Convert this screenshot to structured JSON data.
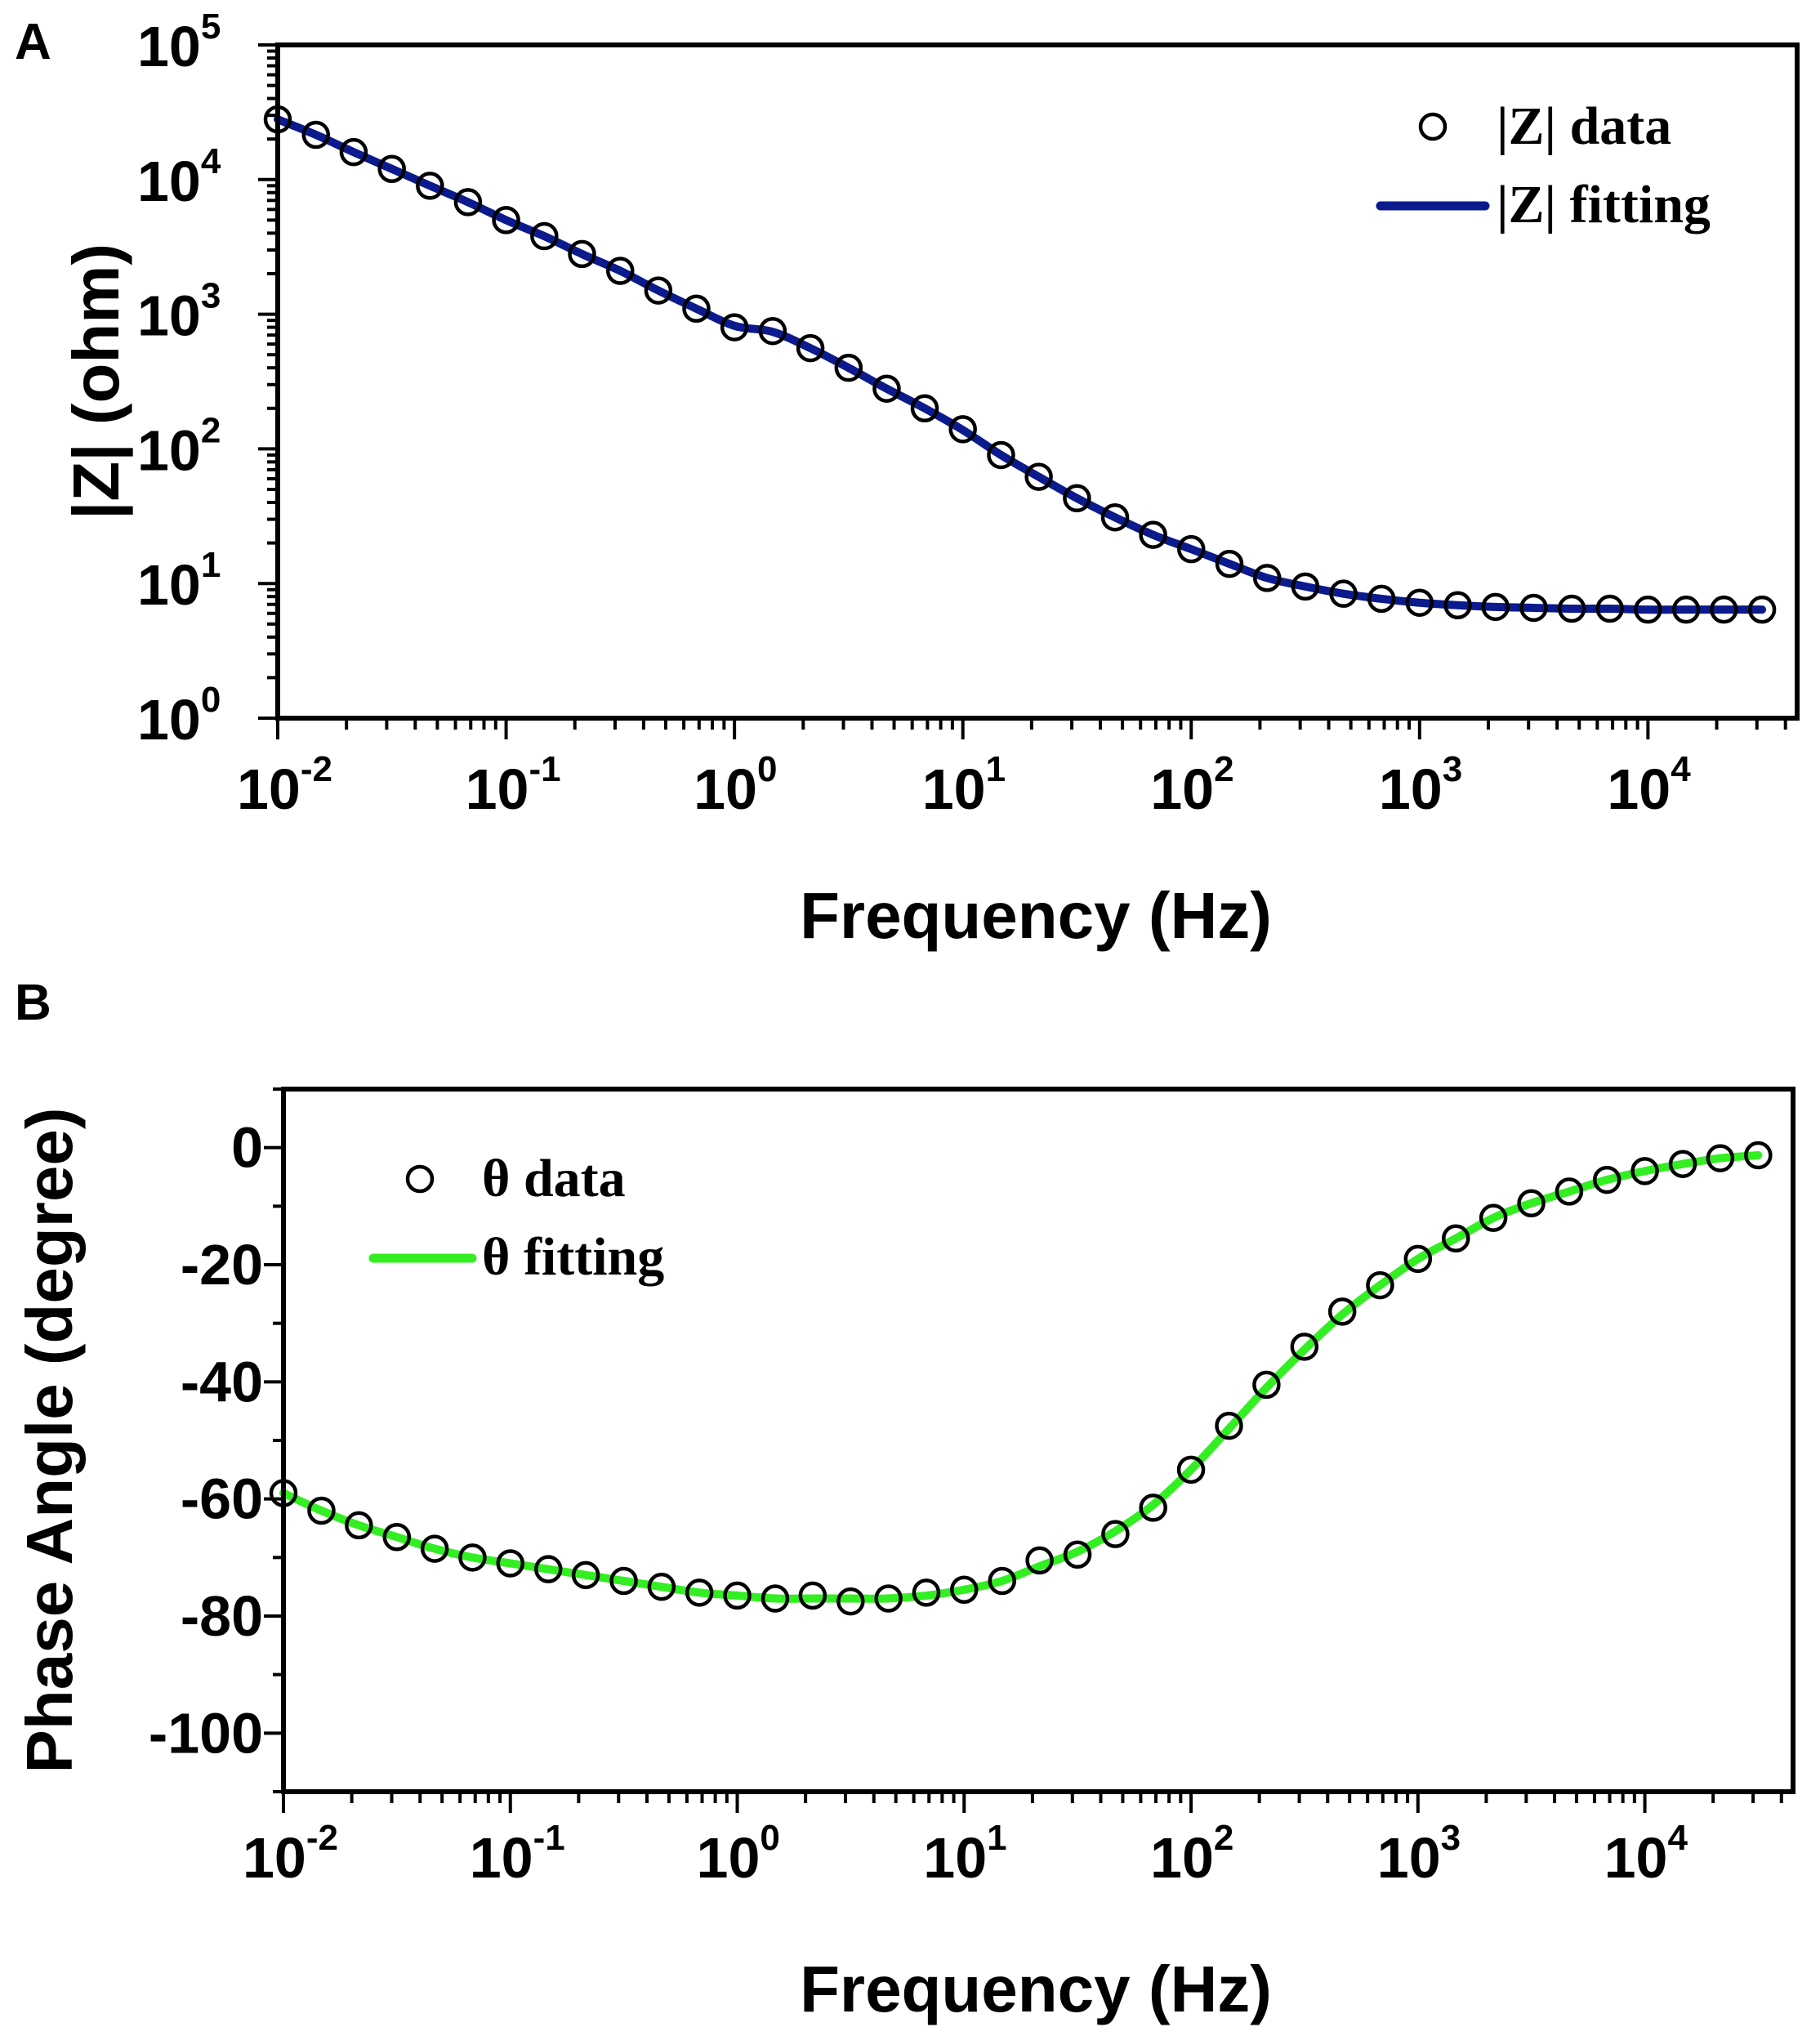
{
  "chart_data": [
    {
      "panel_label": "A",
      "type": "line",
      "yscale": "log",
      "xscale": "log",
      "title": "",
      "xlabel": "Frequency (Hz)",
      "ylabel": "|Z| (ohm)",
      "xlim": [
        0.01,
        45000
      ],
      "ylim": [
        1,
        100000
      ],
      "x_ticks": [
        {
          "base": "10",
          "exp": "-2"
        },
        {
          "base": "10",
          "exp": "-1"
        },
        {
          "base": "10",
          "exp": "0"
        },
        {
          "base": "10",
          "exp": "1"
        },
        {
          "base": "10",
          "exp": "2"
        },
        {
          "base": "10",
          "exp": "3"
        },
        {
          "base": "10",
          "exp": "4"
        }
      ],
      "y_ticks": [
        {
          "base": "10",
          "exp": "0"
        },
        {
          "base": "10",
          "exp": "1"
        },
        {
          "base": "10",
          "exp": "2"
        },
        {
          "base": "10",
          "exp": "3"
        },
        {
          "base": "10",
          "exp": "4"
        },
        {
          "base": "10",
          "exp": "5"
        }
      ],
      "legend": {
        "position": "top-right",
        "entries": [
          "|Z| data",
          "|Z| fitting"
        ]
      },
      "colors": {
        "fit": "#0b1a8c",
        "marker": "#000000"
      },
      "series": [
        {
          "name": "|Z| data",
          "kind": "markers",
          "x": [
            0.01,
            0.0147,
            0.0215,
            0.0316,
            0.0464,
            0.0681,
            0.1,
            0.147,
            0.215,
            0.316,
            0.464,
            0.681,
            1.0,
            1.47,
            2.15,
            3.16,
            4.64,
            6.81,
            10.0,
            14.7,
            21.5,
            31.6,
            46.4,
            68.1,
            100,
            147,
            215,
            316,
            464,
            681,
            1000,
            1470,
            2150,
            3160,
            4640,
            6810,
            10000,
            14700,
            21500,
            31600
          ],
          "values": [
            28000,
            21500,
            16000,
            12000,
            9000,
            6800,
            5000,
            3800,
            2800,
            2100,
            1500,
            1100,
            800,
            750,
            560,
            400,
            280,
            200,
            140,
            90,
            62,
            43,
            31,
            23,
            18,
            14,
            11,
            9.5,
            8.4,
            7.7,
            7.2,
            6.9,
            6.7,
            6.6,
            6.5,
            6.5,
            6.4,
            6.4,
            6.4,
            6.4
          ]
        },
        {
          "name": "|Z| fitting",
          "kind": "line",
          "x": [
            0.01,
            0.0147,
            0.0215,
            0.0316,
            0.0464,
            0.0681,
            0.1,
            0.147,
            0.215,
            0.316,
            0.464,
            0.681,
            1.0,
            1.47,
            2.15,
            3.16,
            4.64,
            6.81,
            10.0,
            14.7,
            21.5,
            31.6,
            46.4,
            68.1,
            100,
            147,
            215,
            316,
            464,
            681,
            1000,
            1470,
            2150,
            3160,
            4640,
            6810,
            10000,
            14700,
            21500,
            31600
          ],
          "values": [
            28000,
            21500,
            16000,
            12000,
            9000,
            6800,
            5000,
            3800,
            2800,
            2100,
            1500,
            1100,
            820,
            740,
            560,
            400,
            280,
            200,
            138,
            90,
            62,
            43,
            31,
            23,
            18,
            14,
            11,
            9.5,
            8.4,
            7.7,
            7.2,
            6.9,
            6.7,
            6.6,
            6.5,
            6.5,
            6.4,
            6.4,
            6.4,
            6.4
          ]
        }
      ]
    },
    {
      "panel_label": "B",
      "type": "line",
      "xscale": "log",
      "yscale": "linear",
      "title": "",
      "xlabel": "Frequency (Hz)",
      "ylabel": "Phase Angle (degree)",
      "xlim": [
        0.01,
        45000
      ],
      "ylim": [
        -110,
        10
      ],
      "x_ticks": [
        {
          "base": "10",
          "exp": "-2"
        },
        {
          "base": "10",
          "exp": "-1"
        },
        {
          "base": "10",
          "exp": "0"
        },
        {
          "base": "10",
          "exp": "1"
        },
        {
          "base": "10",
          "exp": "2"
        },
        {
          "base": "10",
          "exp": "3"
        },
        {
          "base": "10",
          "exp": "4"
        }
      ],
      "y_ticks": [
        "0",
        "-20",
        "-40",
        "-60",
        "-80",
        "-100"
      ],
      "legend": {
        "position": "top-left",
        "entries": [
          "θ data",
          "θ fitting"
        ]
      },
      "colors": {
        "fit": "#33ee22",
        "marker": "#000000"
      },
      "series": [
        {
          "name": "θ data",
          "kind": "markers",
          "x": [
            0.01,
            0.0147,
            0.0215,
            0.0316,
            0.0464,
            0.0681,
            0.1,
            0.147,
            0.215,
            0.316,
            0.464,
            0.681,
            1.0,
            1.47,
            2.15,
            3.16,
            4.64,
            6.81,
            10.0,
            14.7,
            21.5,
            31.6,
            46.4,
            68.1,
            100,
            147,
            215,
            316,
            464,
            681,
            1000,
            1470,
            2150,
            3160,
            4640,
            6810,
            10000,
            14700,
            21500,
            31600
          ],
          "values": [
            -59,
            -62,
            -64.5,
            -66.5,
            -68.5,
            -70,
            -71,
            -72,
            -73,
            -74,
            -75,
            -76,
            -76.5,
            -77,
            -76.5,
            -77.5,
            -77,
            -76,
            -75.5,
            -74,
            -70.5,
            -69.5,
            -66,
            -61.5,
            -55,
            -47.5,
            -40.5,
            -34,
            -28,
            -23.5,
            -19,
            -15.5,
            -12,
            -9.5,
            -7.5,
            -5.5,
            -4,
            -2.8,
            -1.8,
            -1.3
          ]
        },
        {
          "name": "θ fitting",
          "kind": "line",
          "x": [
            0.01,
            0.0147,
            0.0215,
            0.0316,
            0.0464,
            0.0681,
            0.1,
            0.147,
            0.215,
            0.316,
            0.464,
            0.681,
            1.0,
            1.47,
            2.15,
            3.16,
            4.64,
            6.81,
            10.0,
            14.7,
            21.5,
            31.6,
            46.4,
            68.1,
            100,
            147,
            215,
            316,
            464,
            681,
            1000,
            1470,
            2150,
            3160,
            4640,
            6810,
            10000,
            14700,
            21500,
            31600
          ],
          "values": [
            -59,
            -62,
            -64.5,
            -66.5,
            -68.5,
            -70,
            -71,
            -72,
            -73,
            -74,
            -75,
            -76,
            -76.5,
            -77,
            -77,
            -77,
            -77,
            -76.5,
            -75.5,
            -74,
            -71.5,
            -69,
            -65.5,
            -61,
            -55,
            -48,
            -41,
            -34.5,
            -28.5,
            -23.5,
            -19,
            -15.5,
            -12,
            -9.5,
            -7.5,
            -5.5,
            -4,
            -2.8,
            -1.8,
            -1.3
          ]
        }
      ]
    }
  ]
}
